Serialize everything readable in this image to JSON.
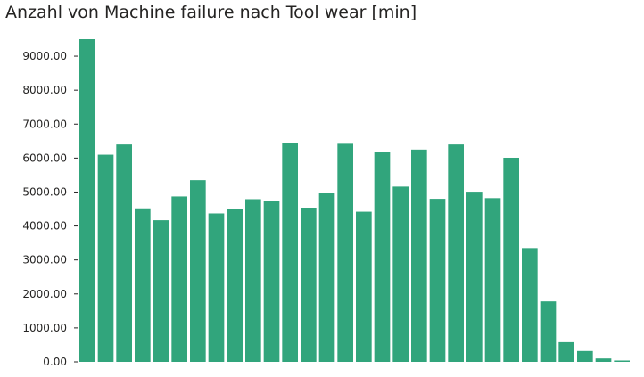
{
  "chart_data": {
    "type": "bar",
    "title": "Anzahl von Machine failure nach Tool wear [min]",
    "xlabel": "",
    "ylabel": "",
    "ylim": [
      0,
      9500
    ],
    "yticks": [
      "0.00",
      "1000.00",
      "2000.00",
      "3000.00",
      "4000.00",
      "5000.00",
      "6000.00",
      "7000.00",
      "8000.00",
      "9000.00"
    ],
    "ytick_values": [
      0,
      1000,
      2000,
      3000,
      4000,
      5000,
      6000,
      7000,
      8000,
      9000
    ],
    "values": [
      9500,
      6100,
      6400,
      4520,
      4170,
      4870,
      5350,
      4370,
      4500,
      4790,
      4740,
      6450,
      4540,
      4960,
      6420,
      4420,
      6170,
      5160,
      6250,
      4800,
      6400,
      5010,
      4820,
      6010,
      3350,
      1780,
      580,
      320,
      100,
      40
    ],
    "bar_color": "#31a57c",
    "grid": false,
    "legend": false
  }
}
